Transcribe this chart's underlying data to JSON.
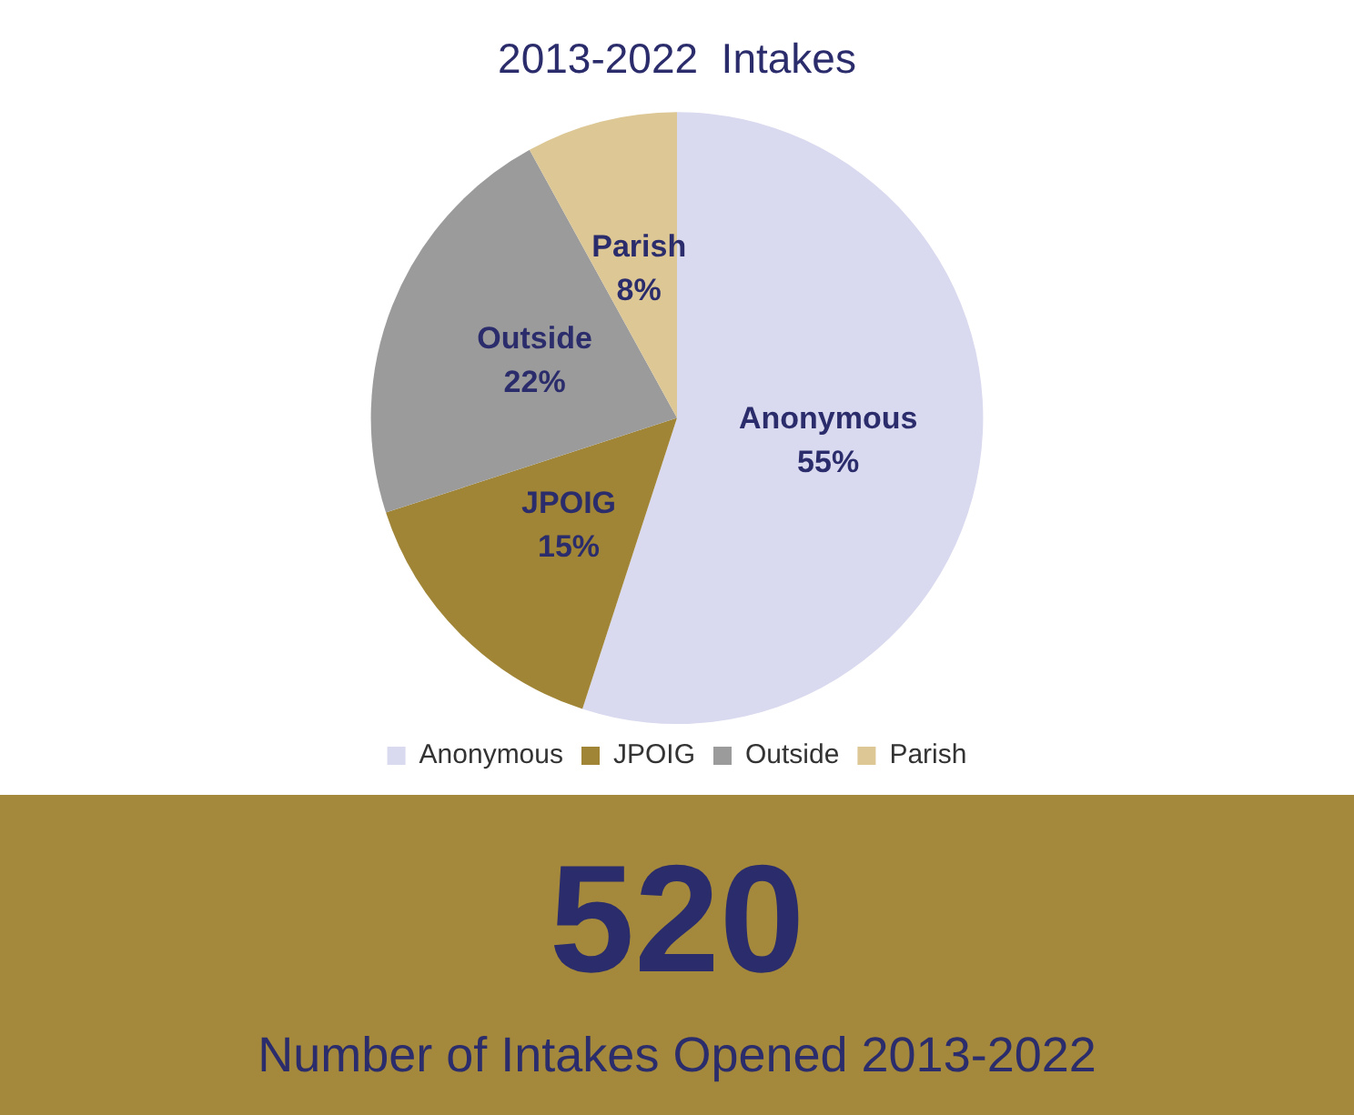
{
  "chart_data": {
    "type": "pie",
    "title": "2013-2022  Intakes",
    "categories": [
      "Anonymous",
      "JPOIG",
      "Outside",
      "Parish"
    ],
    "values": [
      55,
      15,
      22,
      8
    ],
    "value_labels": [
      "55%",
      "15%",
      "22%",
      "8%"
    ],
    "colors": [
      "#d9d9ef",
      "#a08536",
      "#9b9b9b",
      "#dcc795"
    ],
    "legend": "bottom",
    "annotations": [
      "520",
      "Number of Intakes Opened 2013-2022"
    ]
  }
}
